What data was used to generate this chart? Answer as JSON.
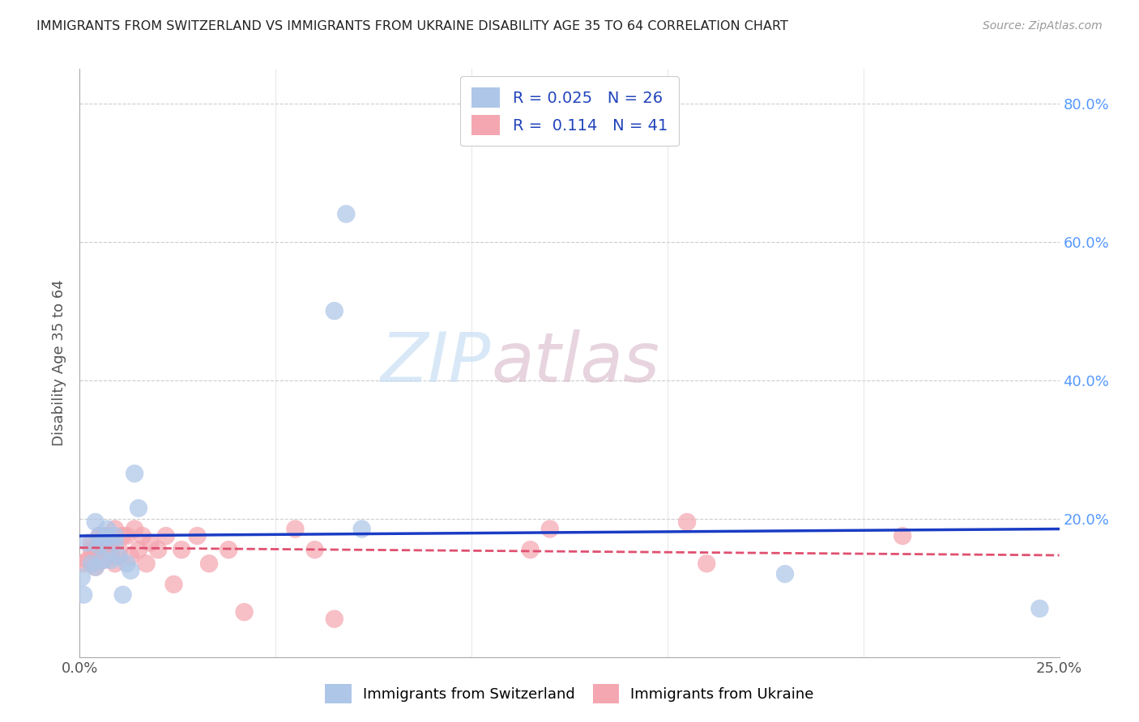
{
  "title": "IMMIGRANTS FROM SWITZERLAND VS IMMIGRANTS FROM UKRAINE DISABILITY AGE 35 TO 64 CORRELATION CHART",
  "source": "Source: ZipAtlas.com",
  "ylabel": "Disability Age 35 to 64",
  "xlim": [
    0,
    0.25
  ],
  "ylim": [
    0,
    0.85
  ],
  "xticks": [
    0.0,
    0.05,
    0.1,
    0.15,
    0.2,
    0.25
  ],
  "xticklabels": [
    "0.0%",
    "",
    "",
    "",
    "",
    "25.0%"
  ],
  "yticks": [
    0.0,
    0.2,
    0.4,
    0.6,
    0.8
  ],
  "yticklabels": [
    "",
    "20.0%",
    "40.0%",
    "60.0%",
    "80.0%"
  ],
  "switzerland_color": "#aec6e8",
  "ukraine_color": "#f4a7b0",
  "switzerland_line_color": "#1a3cc4",
  "ukraine_line_color": "#e05070",
  "R_switzerland": 0.025,
  "N_switzerland": 26,
  "R_ukraine": 0.114,
  "N_ukraine": 41,
  "watermark_zip": "ZIP",
  "watermark_atlas": "atlas",
  "grid_color": "#cccccc",
  "switzerland_x": [
    0.0005,
    0.001,
    0.002,
    0.003,
    0.004,
    0.004,
    0.005,
    0.005,
    0.006,
    0.006,
    0.007,
    0.007,
    0.008,
    0.009,
    0.009,
    0.01,
    0.011,
    0.012,
    0.013,
    0.014,
    0.015,
    0.065,
    0.068,
    0.072,
    0.18,
    0.245
  ],
  "switzerland_y": [
    0.115,
    0.09,
    0.165,
    0.135,
    0.195,
    0.13,
    0.16,
    0.175,
    0.14,
    0.165,
    0.175,
    0.185,
    0.14,
    0.165,
    0.175,
    0.145,
    0.09,
    0.135,
    0.125,
    0.265,
    0.215,
    0.5,
    0.64,
    0.185,
    0.12,
    0.07
  ],
  "ukraine_x": [
    0.001,
    0.002,
    0.003,
    0.003,
    0.004,
    0.004,
    0.005,
    0.005,
    0.006,
    0.006,
    0.007,
    0.007,
    0.008,
    0.008,
    0.009,
    0.009,
    0.01,
    0.011,
    0.012,
    0.013,
    0.014,
    0.015,
    0.016,
    0.017,
    0.018,
    0.02,
    0.022,
    0.024,
    0.026,
    0.03,
    0.033,
    0.038,
    0.042,
    0.055,
    0.06,
    0.065,
    0.115,
    0.12,
    0.155,
    0.16,
    0.21
  ],
  "ukraine_y": [
    0.135,
    0.14,
    0.155,
    0.165,
    0.13,
    0.155,
    0.175,
    0.155,
    0.14,
    0.175,
    0.175,
    0.165,
    0.145,
    0.165,
    0.185,
    0.135,
    0.155,
    0.175,
    0.175,
    0.145,
    0.185,
    0.155,
    0.175,
    0.135,
    0.165,
    0.155,
    0.175,
    0.105,
    0.155,
    0.175,
    0.135,
    0.155,
    0.065,
    0.185,
    0.155,
    0.055,
    0.155,
    0.185,
    0.195,
    0.135,
    0.175
  ],
  "sw_trend_x": [
    0.0,
    0.25
  ],
  "sw_trend_y": [
    0.175,
    0.185
  ],
  "uk_trend_x": [
    0.0,
    0.25
  ],
  "uk_trend_y": [
    0.158,
    0.147
  ]
}
